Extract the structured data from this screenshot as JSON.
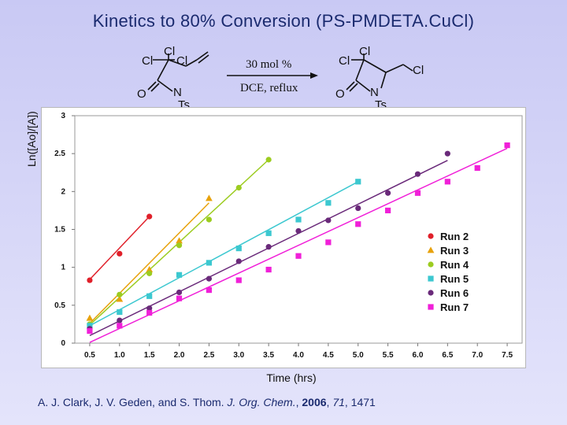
{
  "slide": {
    "title": "Kinetics to 80% Conversion (PS-PMDETA.CuCl)"
  },
  "scheme": {
    "reactant_atoms": [
      "Cl",
      "Cl",
      "Cl",
      "N",
      "O",
      "Ts"
    ],
    "product_atoms": [
      "Cl",
      "Cl",
      "Cl",
      "N",
      "O",
      "Ts"
    ],
    "condition_top": "30 mol %",
    "condition_bottom": "DCE, reflux"
  },
  "citation": {
    "authors_first": "A. J. Clark",
    "authors_rest": ", J. V. Geden, and  S. Thom.  ",
    "journal": "J. Org. Chem.",
    "sep1": ", ",
    "year": "2006",
    "sep2": ", ",
    "volume": "71",
    "pages": ", 1471"
  },
  "chart_data": {
    "type": "scatter",
    "title": "",
    "xlabel": "Time (hrs)",
    "ylabel": "Ln([Ao]/[A])",
    "xlim": [
      0.25,
      7.75
    ],
    "ylim": [
      0,
      3
    ],
    "x_ticks": [
      0.5,
      1.0,
      1.5,
      2.0,
      2.5,
      3.0,
      3.5,
      4.0,
      4.5,
      5.0,
      5.5,
      6.0,
      6.5,
      7.0,
      7.5
    ],
    "x_tick_labels": [
      "0.5",
      "1.0",
      "1.5",
      "2.0",
      "2.5",
      "3.0",
      "3.5",
      "4.0",
      "4.5",
      "5.0",
      "5.5",
      "6.0",
      "6.5",
      "7.0",
      "7.5"
    ],
    "y_ticks": [
      0,
      0.5,
      1,
      1.5,
      2,
      2.5,
      3
    ],
    "y_tick_labels": [
      "0",
      "0.5",
      "1",
      "1.5",
      "2",
      "2.5",
      "3"
    ],
    "grid": false,
    "legend_position": "right",
    "series": [
      {
        "name": "Run 2",
        "color": "#e0202a",
        "marker": "circle",
        "x": [
          0.5,
          1.0,
          1.5
        ],
        "y": [
          0.83,
          1.18,
          1.67
        ],
        "fit": [
          [
            0.5,
            0.84
          ],
          [
            1.5,
            1.67
          ]
        ]
      },
      {
        "name": "Run 3",
        "color": "#e8a20c",
        "marker": "triangle",
        "x": [
          0.5,
          1.0,
          1.5,
          2.0,
          2.5
        ],
        "y": [
          0.33,
          0.58,
          0.97,
          1.35,
          1.91
        ],
        "fit": [
          [
            0.5,
            0.26
          ],
          [
            2.5,
            1.85
          ]
        ]
      },
      {
        "name": "Run 4",
        "color": "#9ccc20",
        "marker": "circle",
        "x": [
          0.5,
          1.0,
          1.5,
          2.0,
          2.5,
          3.0,
          3.5
        ],
        "y": [
          0.25,
          0.64,
          0.92,
          1.29,
          1.63,
          2.05,
          2.42
        ],
        "fit": [
          [
            0.5,
            0.24
          ],
          [
            3.5,
            2.42
          ]
        ]
      },
      {
        "name": "Run 5",
        "color": "#3cc8d0",
        "marker": "square",
        "x": [
          0.5,
          1.0,
          1.5,
          2.0,
          2.5,
          3.0,
          3.5,
          4.0,
          4.5,
          5.0
        ],
        "y": [
          0.23,
          0.41,
          0.62,
          0.9,
          1.06,
          1.25,
          1.45,
          1.63,
          1.85,
          2.13
        ],
        "fit": [
          [
            0.5,
            0.23
          ],
          [
            5.0,
            2.13
          ]
        ]
      },
      {
        "name": "Run 6",
        "color": "#6a2a7a",
        "marker": "circle",
        "x": [
          0.5,
          1.0,
          1.5,
          2.0,
          2.5,
          3.0,
          3.5,
          4.0,
          4.5,
          5.0,
          5.5,
          6.0,
          6.5
        ],
        "y": [
          0.19,
          0.3,
          0.46,
          0.67,
          0.85,
          1.08,
          1.27,
          1.48,
          1.62,
          1.78,
          1.98,
          2.23,
          2.5
        ],
        "fit": [
          [
            0.5,
            0.1
          ],
          [
            6.5,
            2.41
          ]
        ]
      },
      {
        "name": "Run 7",
        "color": "#f020d8",
        "marker": "square",
        "x": [
          0.5,
          1.0,
          1.5,
          2.0,
          2.5,
          3.0,
          3.5,
          4.0,
          4.5,
          5.0,
          5.5,
          6.0,
          6.5,
          7.0,
          7.5
        ],
        "y": [
          0.16,
          0.23,
          0.4,
          0.59,
          0.7,
          0.83,
          0.97,
          1.15,
          1.33,
          1.57,
          1.75,
          1.98,
          2.13,
          2.31,
          2.61
        ],
        "fit": [
          [
            0.5,
            0.01
          ],
          [
            7.5,
            2.57
          ]
        ]
      }
    ]
  }
}
